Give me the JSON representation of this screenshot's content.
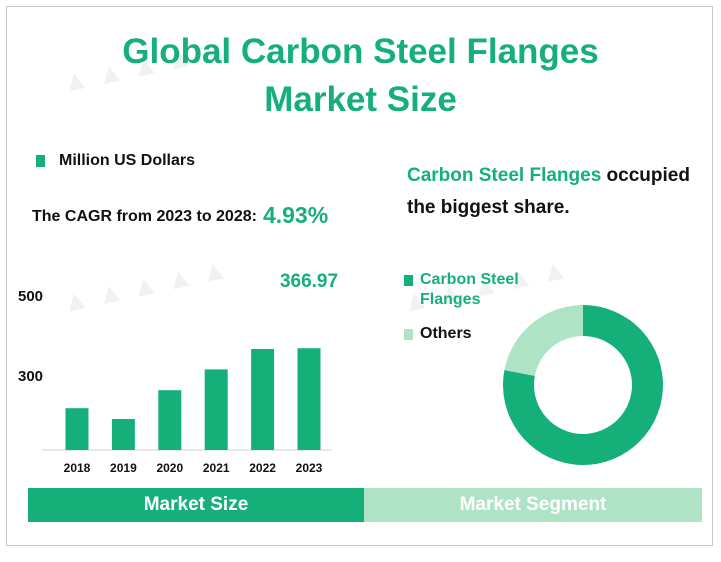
{
  "title_line1": "Global Carbon Steel Flanges",
  "title_line2": "Market Size",
  "unit_label": "Million US Dollars",
  "cagr_label": "The CAGR from 2023 to 2028:",
  "cagr_value": "4.93%",
  "share_highlight": "Carbon Steel Flanges",
  "share_rest": " occupied the biggest share.",
  "colors": {
    "accent": "#15b07a",
    "light": "#afe3c5"
  },
  "tabs": {
    "left": "Market Size",
    "right": "Market Segment"
  },
  "chart_data": [
    {
      "type": "bar",
      "categories": [
        "2018",
        "2019",
        "2020",
        "2021",
        "2022",
        "2023"
      ],
      "values": [
        217,
        190,
        262,
        314,
        365,
        366.97
      ],
      "ytick_labels": [
        "300",
        "500"
      ],
      "data_label": "366.97",
      "color": "#15b07a"
    },
    {
      "type": "pie",
      "donut": true,
      "slices": [
        {
          "label": "Carbon Steel Flanges",
          "value": 78,
          "color": "#15b07a"
        },
        {
          "label": "Others",
          "value": 22,
          "color": "#afe3c5"
        }
      ]
    }
  ]
}
